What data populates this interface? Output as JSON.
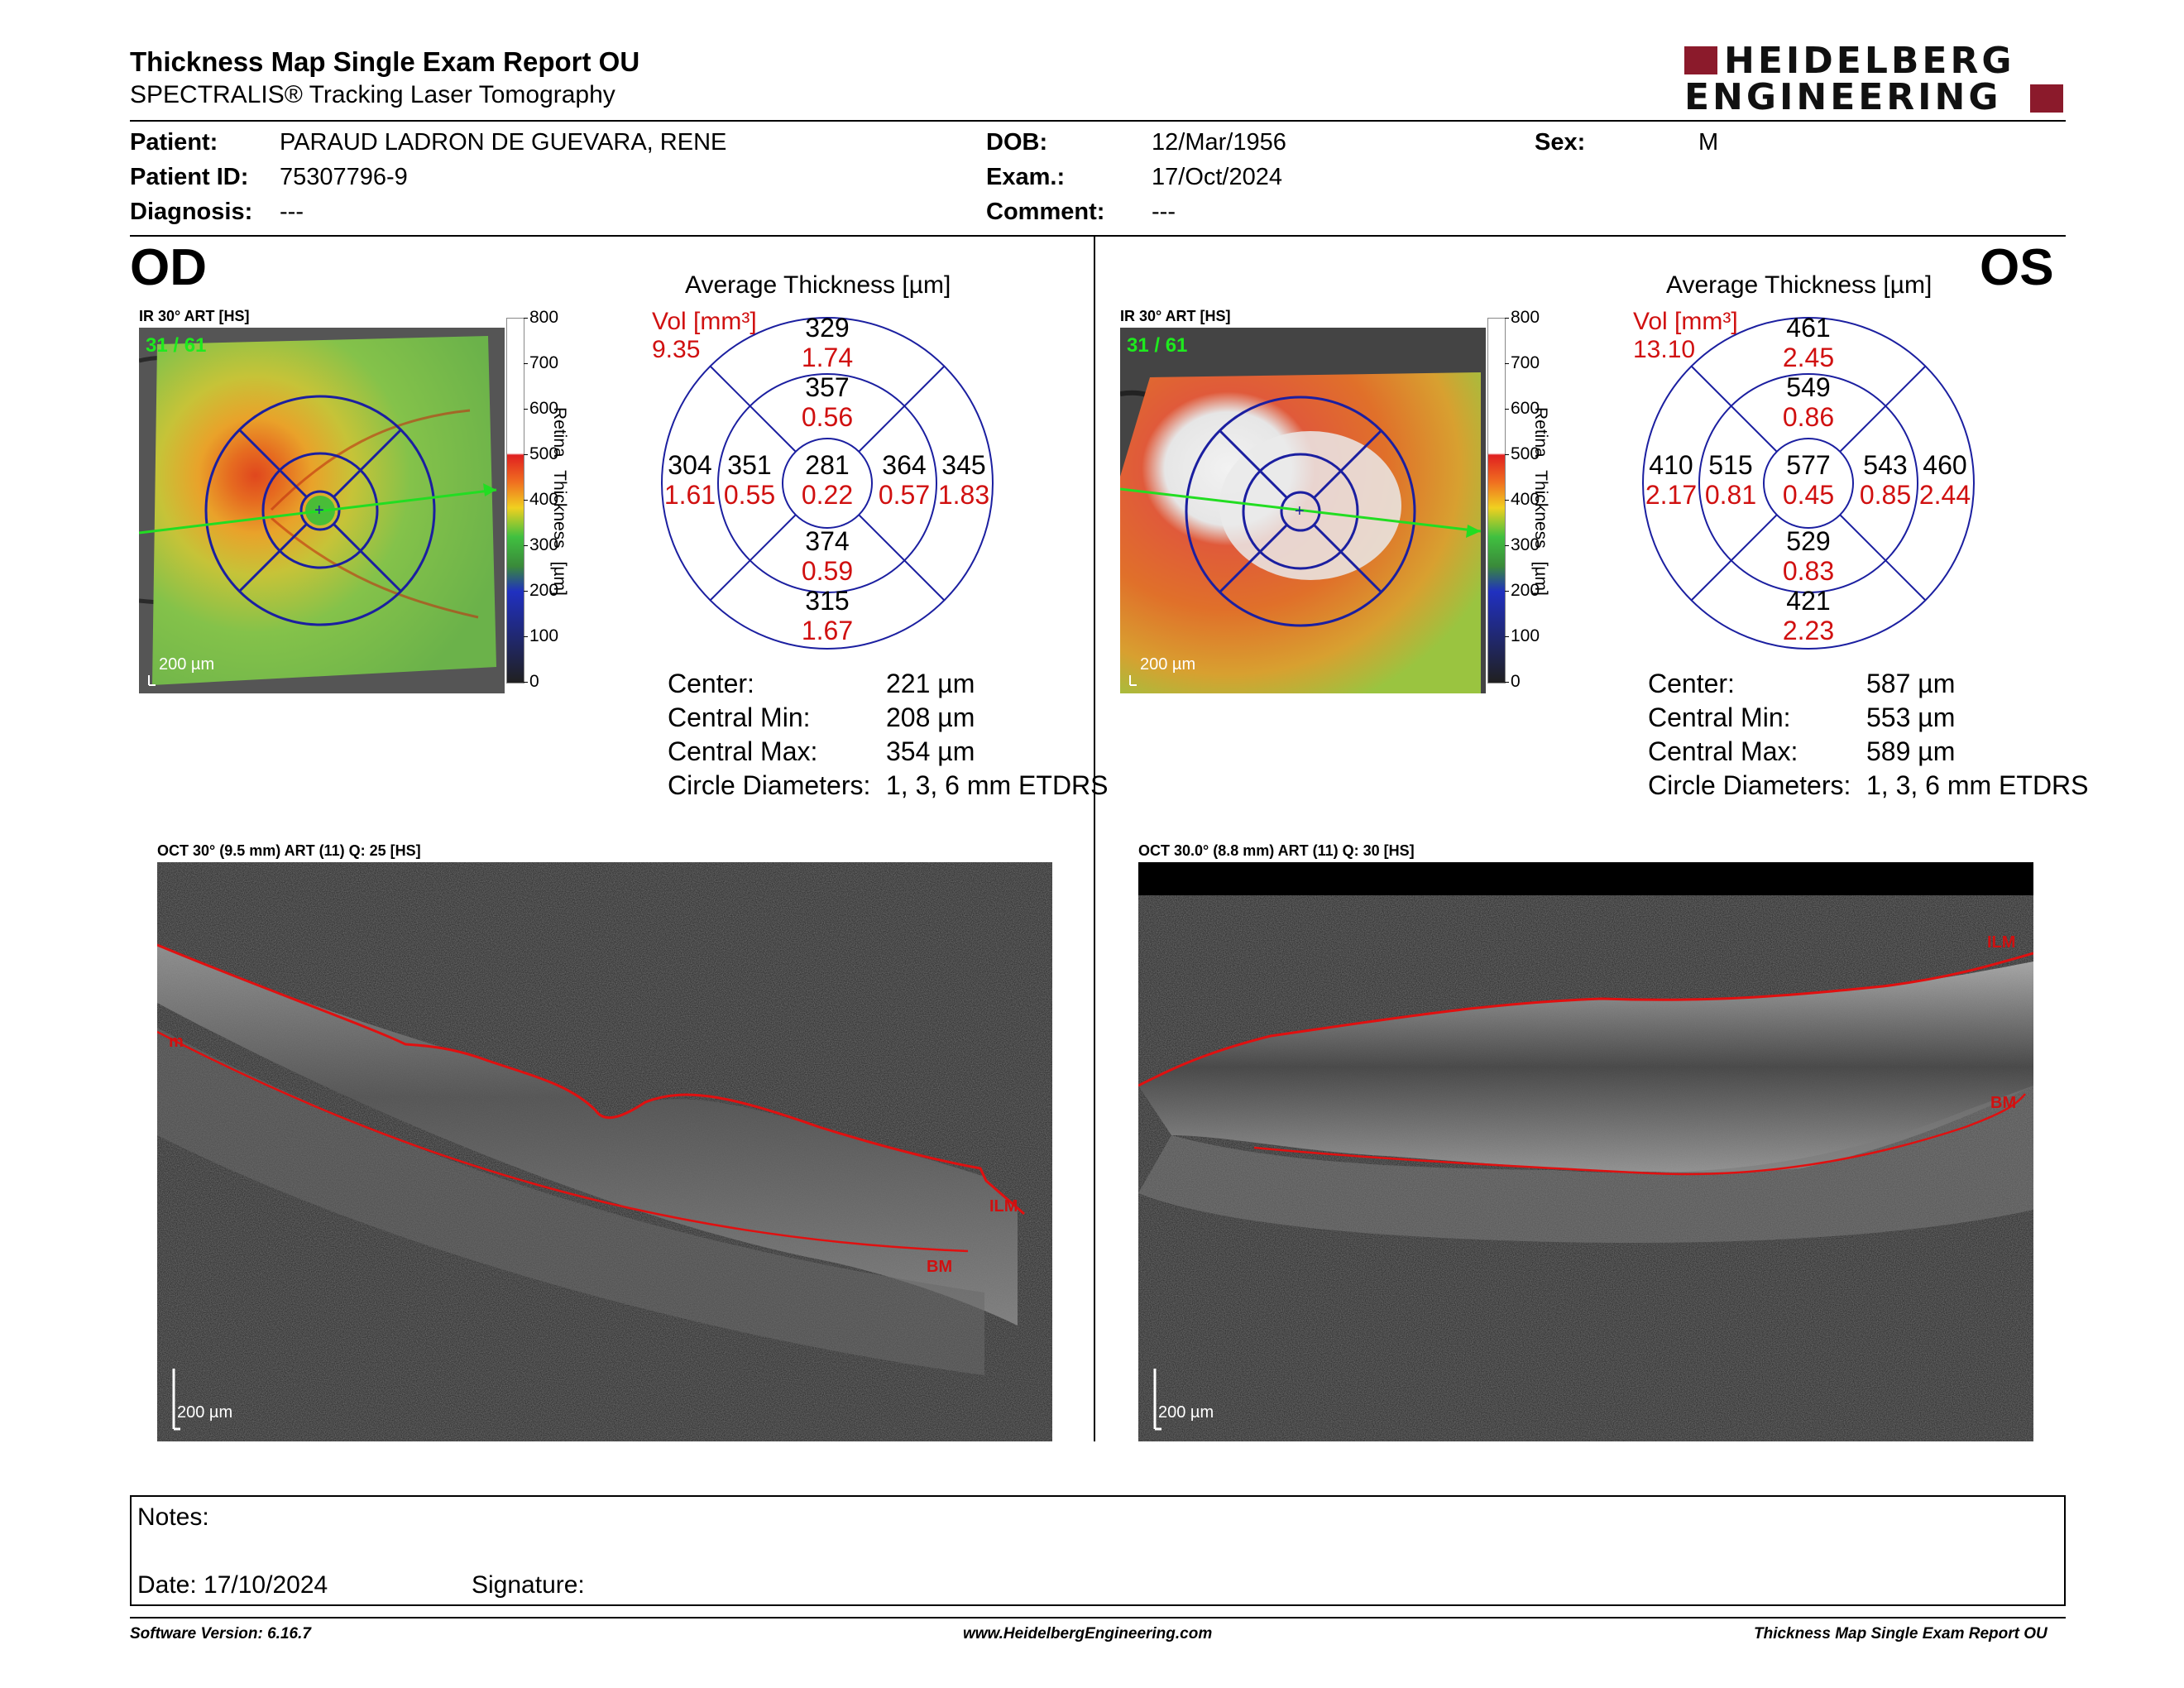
{
  "header": {
    "title": "Thickness Map Single Exam Report OU",
    "subtitle": "SPECTRALIS® Tracking Laser Tomography",
    "logo_line1": "HEIDELBERG",
    "logo_line2": "ENGINEERING"
  },
  "patient": {
    "patient_label": "Patient:",
    "patient_value": "PARAUD LADRON DE GUEVARA, RENE",
    "id_label": "Patient ID:",
    "id_value": "75307796-9",
    "diag_label": "Diagnosis:",
    "diag_value": "---",
    "dob_label": "DOB:",
    "dob_value": "12/Mar/1956",
    "exam_label": "Exam.:",
    "exam_value": "17/Oct/2024",
    "comment_label": "Comment:",
    "comment_value": "---",
    "sex_label": "Sex:",
    "sex_value": "M"
  },
  "colors": {
    "accent": "#8b1a2b",
    "grid_blue": "#1b1fa0",
    "seg_red": "#e01010"
  },
  "od": {
    "eye": "OD",
    "ir_label": "IR 30° ART [HS]",
    "frame": "31 / 61",
    "ir_scale": "200 µm",
    "scale_title": "Retina Thickness [µm]",
    "scale_ticks": [
      "800",
      "700",
      "600",
      "500",
      "400",
      "300",
      "200",
      "100",
      "0"
    ],
    "avg_title": "Average Thickness [µm]",
    "vol_label": "Vol [mm³]",
    "vol_value": "9.35",
    "sectors": {
      "sup_outer": {
        "t": "329",
        "v": "1.74"
      },
      "sup_inner": {
        "t": "357",
        "v": "0.56"
      },
      "temp_outer": {
        "t": "304",
        "v": "1.61"
      },
      "temp_inner": {
        "t": "351",
        "v": "0.55"
      },
      "center": {
        "t": "281",
        "v": "0.22"
      },
      "nas_inner": {
        "t": "364",
        "v": "0.57"
      },
      "nas_outer": {
        "t": "345",
        "v": "1.83"
      },
      "inf_inner": {
        "t": "374",
        "v": "0.59"
      },
      "inf_outer": {
        "t": "315",
        "v": "1.67"
      }
    },
    "stats": [
      {
        "label": "Center:",
        "value": "221 µm"
      },
      {
        "label": "Central Min:",
        "value": "208 µm"
      },
      {
        "label": "Central Max:",
        "value": "354 µm"
      },
      {
        "label": "Circle Diameters:",
        "value": "1, 3, 6 mm ETDRS"
      }
    ],
    "oct_label": "OCT 30° (9.5 mm) ART (11) Q: 25 [HS]",
    "oct_scale": "200 µm",
    "seg_ilm": "ILM",
    "seg_bm": "BM",
    "seg_m": "m"
  },
  "os": {
    "eye": "OS",
    "ir_label": "IR 30° ART [HS]",
    "frame": "31 / 61",
    "ir_scale": "200 µm",
    "scale_title": "Retina Thickness [µm]",
    "scale_ticks": [
      "800",
      "700",
      "600",
      "500",
      "400",
      "300",
      "200",
      "100",
      "0"
    ],
    "avg_title": "Average Thickness [µm]",
    "vol_label": "Vol [mm³]",
    "vol_value": "13.10",
    "sectors": {
      "sup_outer": {
        "t": "461",
        "v": "2.45"
      },
      "sup_inner": {
        "t": "549",
        "v": "0.86"
      },
      "temp_outer": {
        "t": "410",
        "v": "2.17"
      },
      "temp_inner": {
        "t": "515",
        "v": "0.81"
      },
      "center": {
        "t": "577",
        "v": "0.45"
      },
      "nas_inner": {
        "t": "543",
        "v": "0.85"
      },
      "nas_outer": {
        "t": "460",
        "v": "2.44"
      },
      "inf_inner": {
        "t": "529",
        "v": "0.83"
      },
      "inf_outer": {
        "t": "421",
        "v": "2.23"
      }
    },
    "stats": [
      {
        "label": "Center:",
        "value": "587 µm"
      },
      {
        "label": "Central Min:",
        "value": "553 µm"
      },
      {
        "label": "Central Max:",
        "value": "589 µm"
      },
      {
        "label": "Circle Diameters:",
        "value": "1, 3, 6 mm ETDRS"
      }
    ],
    "oct_label": "OCT 30.0° (8.8 mm) ART (11) Q: 30 [HS]",
    "oct_scale": "200 µm",
    "seg_ilm": "ILM",
    "seg_bm": "BM"
  },
  "notes": {
    "notes_label": "Notes:",
    "date_label": "Date: 17/10/2024",
    "signature_label": "Signature:"
  },
  "footer": {
    "software": "Software Version: 6.16.7",
    "website": "www.HeidelbergEngineering.com",
    "report": "Thickness Map Single Exam Report OU"
  }
}
